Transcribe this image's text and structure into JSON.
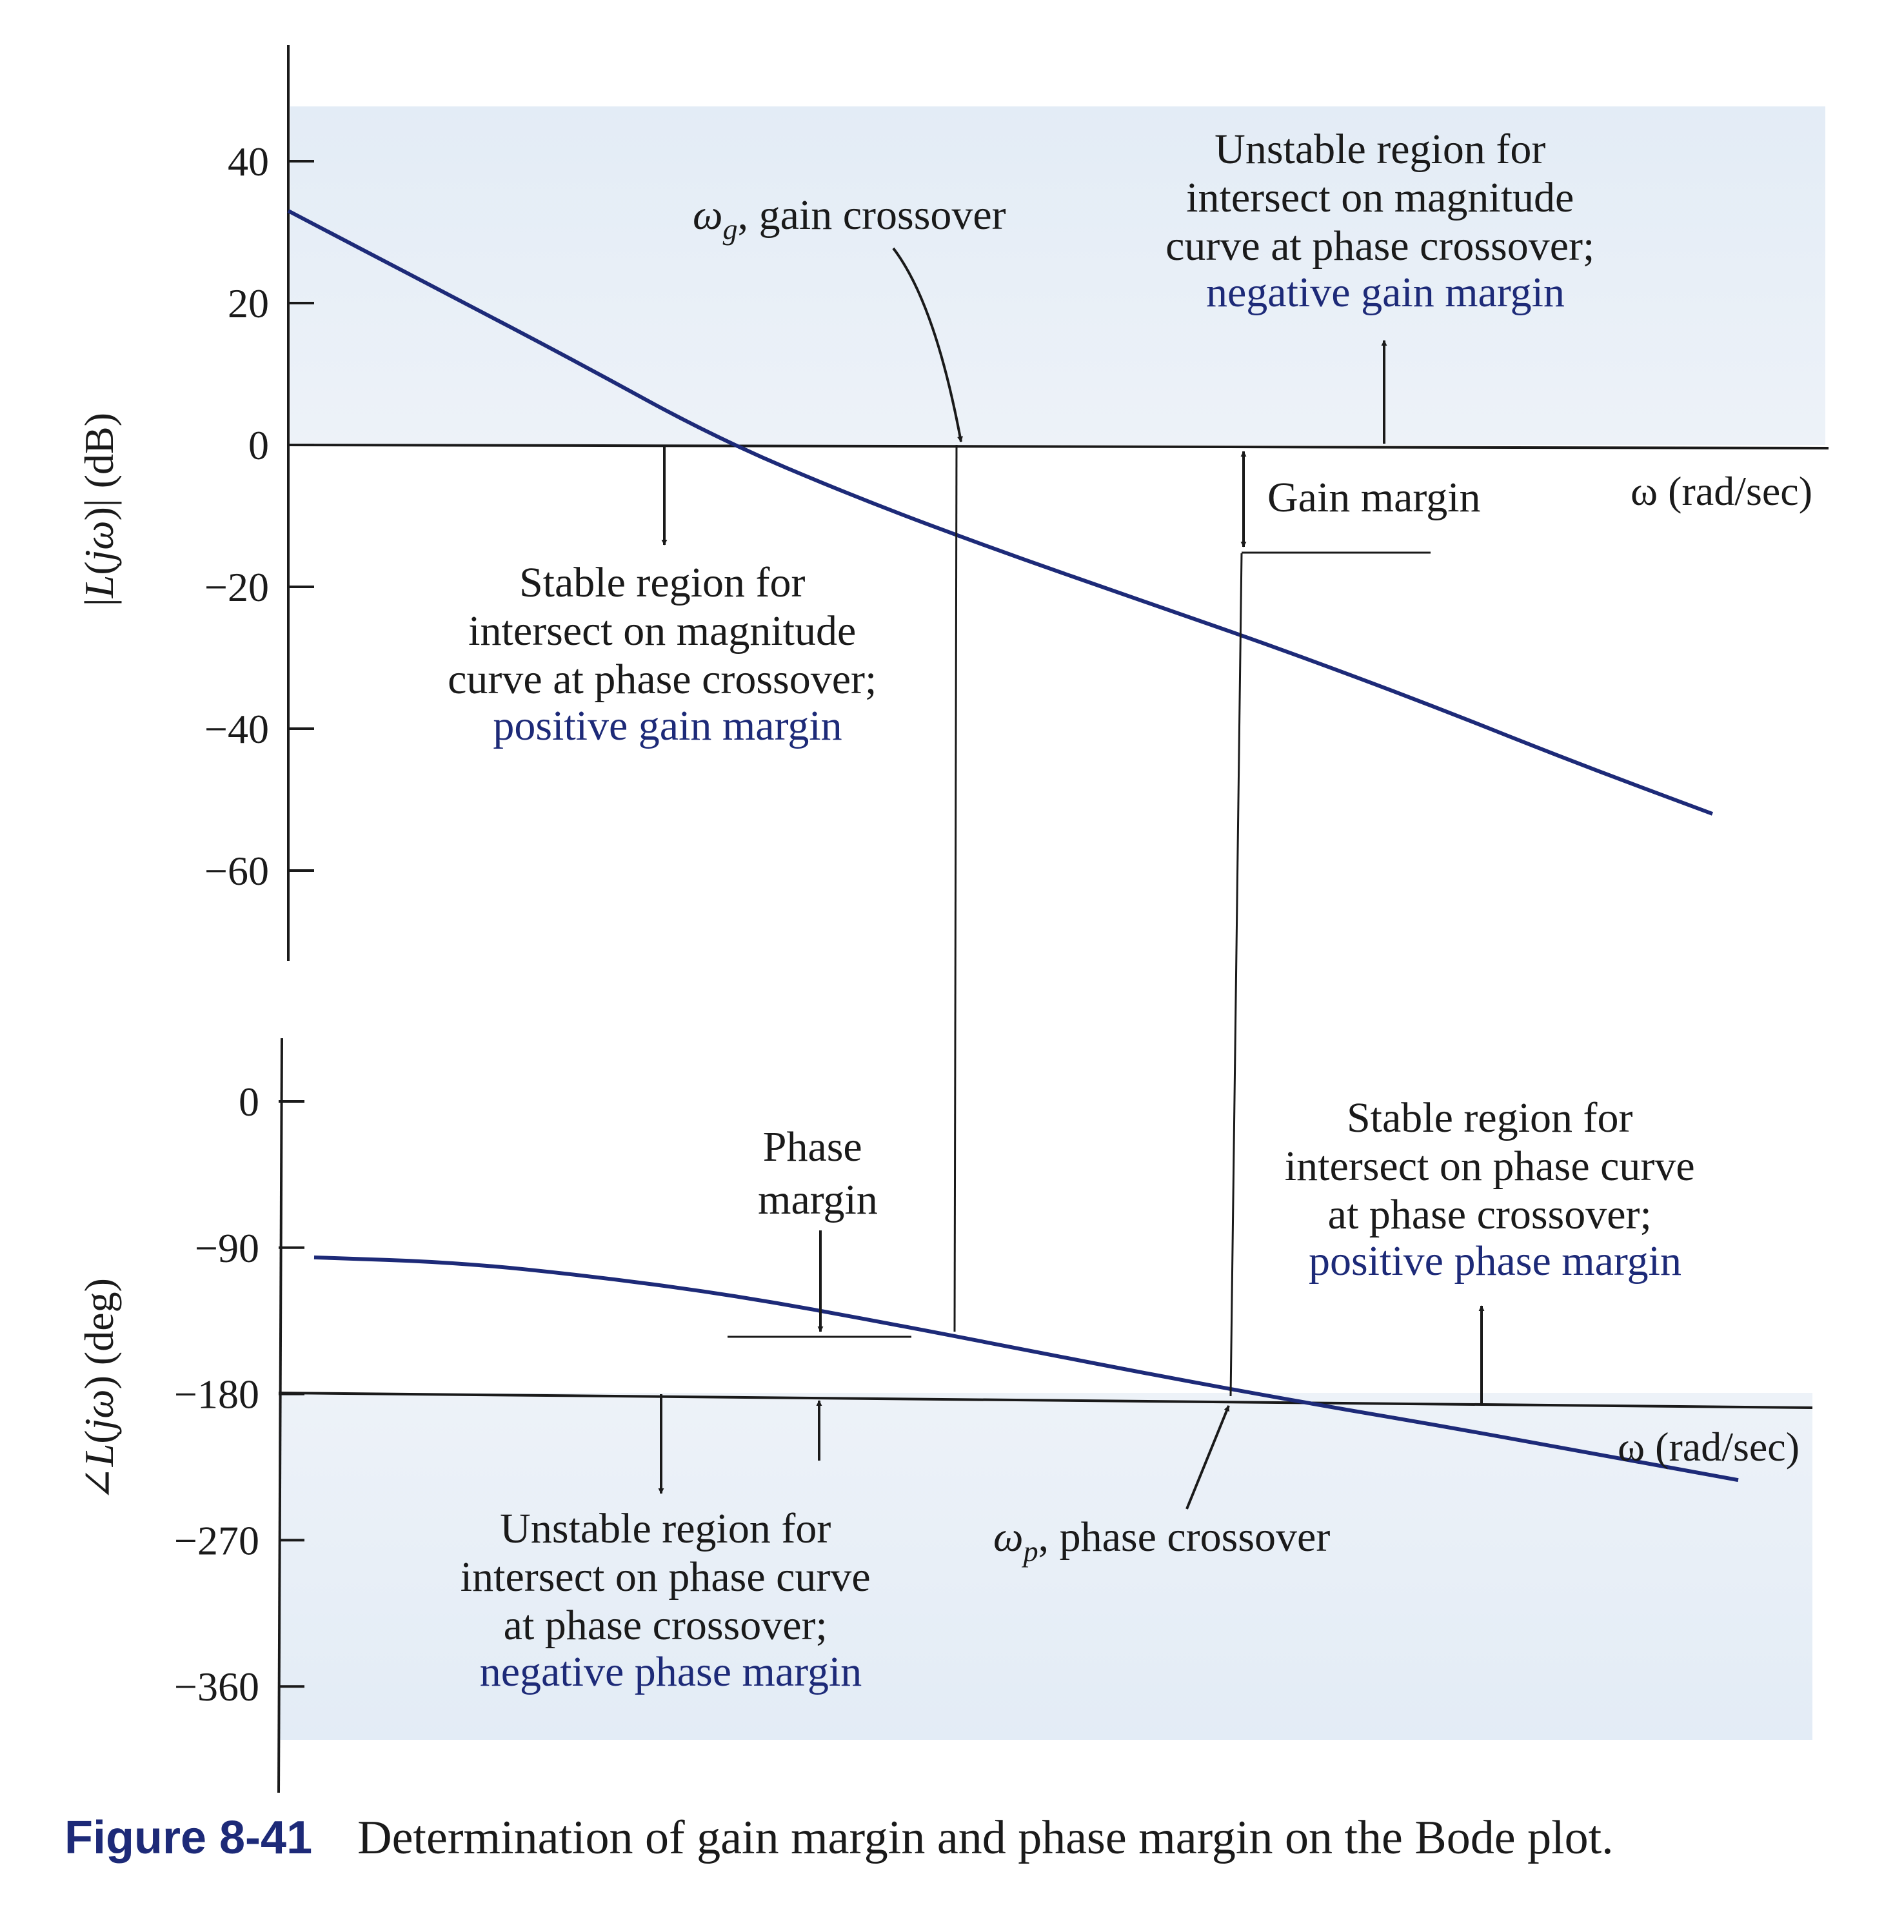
{
  "chart_data": [
    {
      "type": "line",
      "ylabel": "|L(jω)| (dB)",
      "xlabel": "ω (rad/sec)",
      "yticks": [
        "40",
        "20",
        "0",
        "−20",
        "−40",
        "−60"
      ],
      "ylim": [
        -72,
        52
      ],
      "series": [
        {
          "x": [
            0,
            1,
            2,
            3,
            4,
            5,
            6,
            7,
            8,
            9,
            10
          ],
          "values": [
            33,
            22.5,
            12,
            1,
            -7.5,
            -15,
            -22,
            -29,
            -36.5,
            -44.5,
            -52
          ]
        }
      ]
    },
    {
      "type": "line",
      "ylabel": "∠L(jω) (deg)",
      "xlabel": "ω (rad/sec)",
      "yticks": [
        "0",
        "−90",
        "−180",
        "−270",
        "−360"
      ],
      "ylim": [
        -420,
        45
      ],
      "series": [
        {
          "x": [
            0,
            1,
            2,
            3,
            4,
            5,
            6,
            7,
            8,
            9,
            10
          ],
          "values": [
            -96,
            -99,
            -108,
            -120,
            -136,
            -153,
            -170,
            -186,
            -201,
            -217,
            -233
          ]
        }
      ]
    }
  ],
  "annotations": {
    "gain_crossover": [
      "ω",
      "g",
      ", gain crossover"
    ],
    "unstable_top": [
      "Unstable region for",
      "intersect on magnitude",
      "curve at phase crossover;"
    ],
    "unstable_top_blue": "negative gain margin",
    "gain_margin": "Gain margin",
    "stable_top": [
      "Stable region for",
      "intersect on magnitude",
      "curve at phase crossover;"
    ],
    "stable_top_blue": "positive gain margin",
    "phase_margin": [
      "Phase",
      "margin"
    ],
    "stable_bottom": [
      "Stable region for",
      "intersect on phase curve",
      "at phase crossover;"
    ],
    "stable_bottom_blue": "positive phase margin",
    "unstable_bottom": [
      "Unstable region for",
      "intersect on phase curve",
      "at phase crossover;"
    ],
    "unstable_bottom_blue": "negative phase margin",
    "phase_crossover": [
      "ω",
      "p",
      ", phase crossover"
    ]
  },
  "caption": {
    "label": "Figure 8-41",
    "text": "Determination of gain margin and phase margin on the Bode plot."
  },
  "colors": {
    "curve": "#1d2a78",
    "shade": "#e6eef7",
    "blue_text": "#1d2a78",
    "ink": "#1a1a1a"
  }
}
